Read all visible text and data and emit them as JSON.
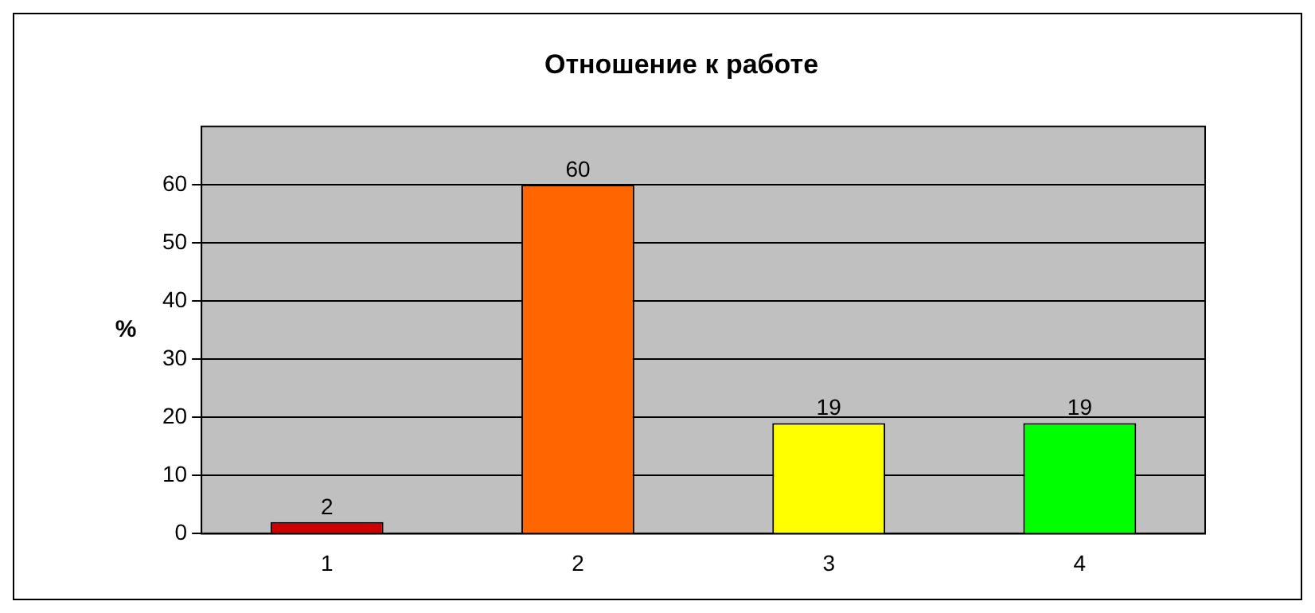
{
  "chart_data": {
    "type": "bar",
    "title": "Отношение к работе",
    "ylabel": "%",
    "categories": [
      "1",
      "2",
      "3",
      "4"
    ],
    "values": [
      2,
      60,
      19,
      19
    ],
    "colors": [
      "#cc0000",
      "#ff6600",
      "#ffff00",
      "#00ff00"
    ],
    "ylim": [
      0,
      70
    ],
    "yticks": [
      0,
      10,
      20,
      30,
      40,
      50,
      60
    ],
    "grid": "y",
    "data_labels": true,
    "legend": false
  }
}
